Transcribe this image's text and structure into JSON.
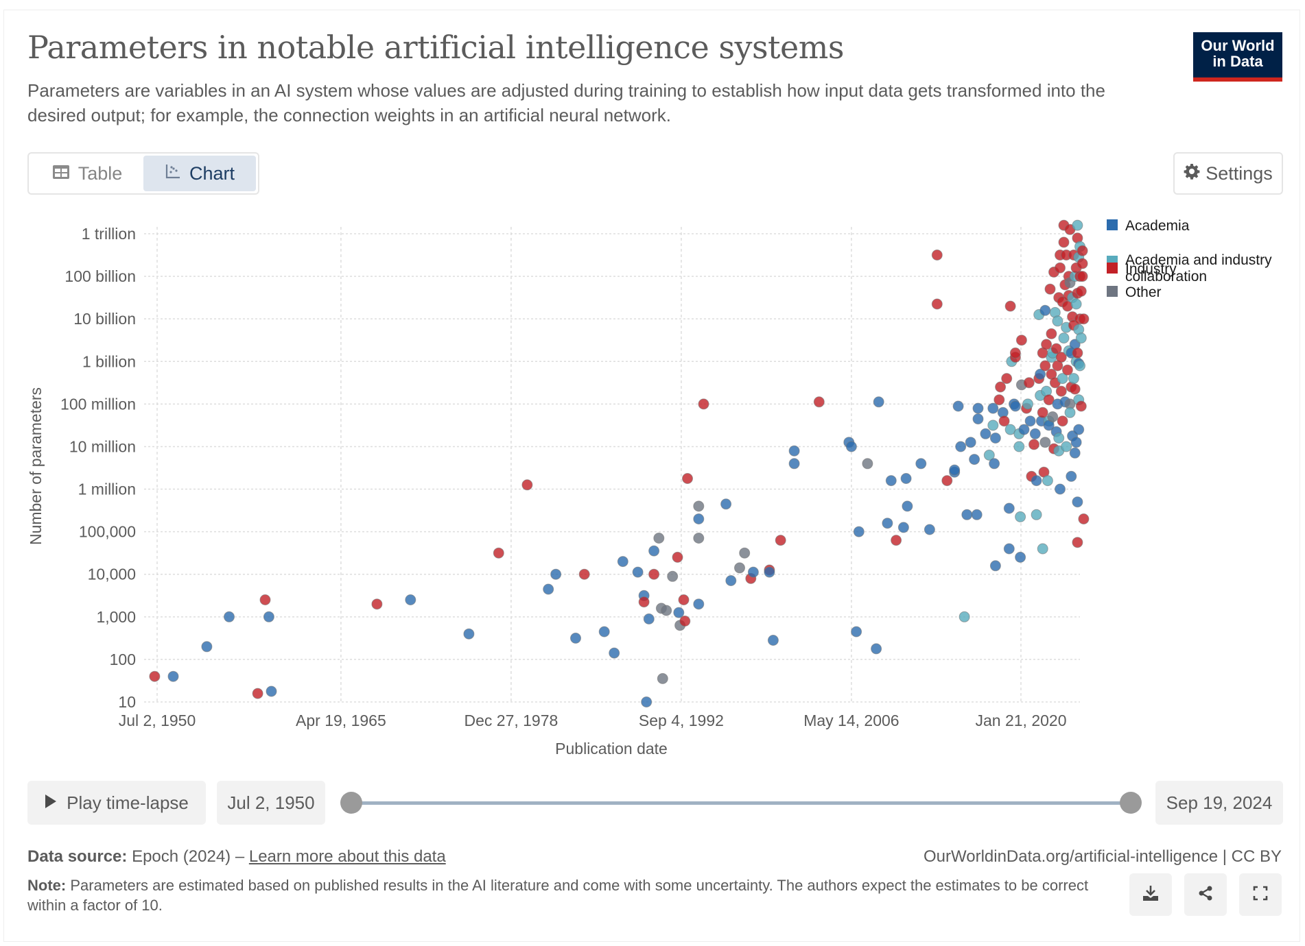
{
  "header": {
    "title": "Parameters in notable artificial intelligence systems",
    "subtitle": "Parameters are variables in an AI system whose values are adjusted during training to establish how input data gets transformed into the desired output; for example, the connection weights in an artificial neural network.",
    "logo_line1": "Our World",
    "logo_line2": "in Data"
  },
  "tabs": [
    {
      "label": "Table",
      "icon": "table-icon",
      "active": false
    },
    {
      "label": "Chart",
      "icon": "scatter-chart-icon",
      "active": true
    }
  ],
  "settings_label": "Settings",
  "controls": {
    "play_label": "Play time-lapse",
    "start_date": "Jul 2, 1950",
    "end_date": "Sep 19, 2024",
    "range_start_fraction": 0,
    "range_end_fraction": 1
  },
  "footer": {
    "source_label": "Data source:",
    "source_text": "Epoch (2024) – ",
    "source_link": "Learn more about this data",
    "url_text": "OurWorldinData.org/artificial-intelligence | CC BY",
    "note_label": "Note:",
    "note_text": "Parameters are estimated based on published results in the AI literature and come with some uncertainty. The authors expect the estimates to be correct within a factor of 10.",
    "buttons": [
      "download-icon",
      "share-icon",
      "fullscreen-icon"
    ]
  },
  "colors": {
    "Academia": "#2c6cae",
    "Academia and industry collaboration": "#58abbd",
    "Industry": "#c22127",
    "Other": "#6e7581"
  },
  "chart_data": {
    "type": "scatter",
    "title": "Parameters in notable artificial intelligence systems",
    "xlabel": "Publication date",
    "ylabel": "Number of parameters",
    "y_scale": "log",
    "ylim": [
      10,
      1000000000000
    ],
    "xlim_years": [
      1949.3,
      2025.8
    ],
    "x_ticks": [
      {
        "year": 1950.5,
        "label": "Jul 2, 1950"
      },
      {
        "year": 1965.3,
        "label": "Apr 19, 1965"
      },
      {
        "year": 1979.0,
        "label": "Dec 27, 1978"
      },
      {
        "year": 1992.7,
        "label": "Sep 4, 1992"
      },
      {
        "year": 2006.4,
        "label": "May 14, 2006"
      },
      {
        "year": 2020.05,
        "label": "Jan 21, 2020"
      }
    ],
    "y_ticks": [
      {
        "exp": 1,
        "label": "10"
      },
      {
        "exp": 2,
        "label": "100"
      },
      {
        "exp": 3,
        "label": "1,000"
      },
      {
        "exp": 4,
        "label": "10,000"
      },
      {
        "exp": 5,
        "label": "100,000"
      },
      {
        "exp": 6,
        "label": "1 million"
      },
      {
        "exp": 7,
        "label": "10 million"
      },
      {
        "exp": 8,
        "label": "100 million"
      },
      {
        "exp": 9,
        "label": "1 billion"
      },
      {
        "exp": 10,
        "label": "10 billion"
      },
      {
        "exp": 11,
        "label": "100 billion"
      },
      {
        "exp": 12,
        "label": "1 trillion"
      }
    ],
    "grid": true,
    "legend_position": "top-right",
    "legend": [
      "Academia",
      "Academia and industry collaboration",
      "Industry",
      "Other"
    ],
    "point_format": "[year, log10(parameters), category]",
    "points": [
      [
        1950.3,
        1.6,
        "I"
      ],
      [
        1951.8,
        1.6,
        "A"
      ],
      [
        1954.5,
        2.3,
        "A"
      ],
      [
        1956.3,
        3.0,
        "A"
      ],
      [
        1958.6,
        1.2,
        "I"
      ],
      [
        1959.2,
        3.4,
        "I"
      ],
      [
        1959.5,
        3.0,
        "A"
      ],
      [
        1959.7,
        1.25,
        "A"
      ],
      [
        1968.2,
        3.3,
        "I"
      ],
      [
        1970.9,
        3.4,
        "A"
      ],
      [
        1975.6,
        2.6,
        "A"
      ],
      [
        1978.0,
        4.5,
        "I"
      ],
      [
        1980.3,
        6.1,
        "I"
      ],
      [
        1982.0,
        3.65,
        "A"
      ],
      [
        1982.6,
        4.0,
        "A"
      ],
      [
        1984.2,
        2.5,
        "A"
      ],
      [
        1984.9,
        4.0,
        "I"
      ],
      [
        1986.5,
        2.65,
        "A"
      ],
      [
        1987.3,
        2.15,
        "A"
      ],
      [
        1988.0,
        4.3,
        "A"
      ],
      [
        1989.2,
        4.05,
        "A"
      ],
      [
        1989.7,
        3.5,
        "A"
      ],
      [
        1989.7,
        3.35,
        "I"
      ],
      [
        1989.9,
        1.0,
        "A"
      ],
      [
        1990.1,
        2.95,
        "A"
      ],
      [
        1990.5,
        4.0,
        "I"
      ],
      [
        1990.5,
        4.55,
        "A"
      ],
      [
        1990.9,
        4.85,
        "O"
      ],
      [
        1991.1,
        3.2,
        "O"
      ],
      [
        1991.2,
        1.55,
        "O"
      ],
      [
        1991.5,
        3.15,
        "O"
      ],
      [
        1992.0,
        3.95,
        "O"
      ],
      [
        1992.4,
        4.4,
        "I"
      ],
      [
        1992.5,
        3.1,
        "A"
      ],
      [
        1992.6,
        2.8,
        "O"
      ],
      [
        1992.9,
        3.4,
        "I"
      ],
      [
        1993.2,
        6.25,
        "I"
      ],
      [
        1993.0,
        2.9,
        "I"
      ],
      [
        1994.1,
        3.3,
        "A"
      ],
      [
        1994.1,
        4.85,
        "O"
      ],
      [
        1994.1,
        5.3,
        "A"
      ],
      [
        1994.1,
        5.6,
        "O"
      ],
      [
        1994.5,
        8.0,
        "I"
      ],
      [
        1996.3,
        5.65,
        "A"
      ],
      [
        1996.7,
        3.85,
        "A"
      ],
      [
        1997.4,
        4.15,
        "O"
      ],
      [
        1997.8,
        4.5,
        "O"
      ],
      [
        1998.3,
        3.9,
        "I"
      ],
      [
        1998.5,
        4.05,
        "A"
      ],
      [
        1999.8,
        4.1,
        "I"
      ],
      [
        1999.8,
        4.05,
        "A"
      ],
      [
        2000.1,
        2.45,
        "A"
      ],
      [
        2000.7,
        4.8,
        "I"
      ],
      [
        2001.8,
        6.9,
        "A"
      ],
      [
        2001.8,
        6.6,
        "A"
      ],
      [
        2003.8,
        8.05,
        "I"
      ],
      [
        2006.2,
        7.1,
        "A"
      ],
      [
        2006.4,
        7.0,
        "A"
      ],
      [
        2006.8,
        2.65,
        "A"
      ],
      [
        2007.0,
        5.0,
        "A"
      ],
      [
        2007.7,
        6.6,
        "O"
      ],
      [
        2008.4,
        2.25,
        "A"
      ],
      [
        2008.6,
        8.05,
        "A"
      ],
      [
        2009.3,
        5.2,
        "A"
      ],
      [
        2009.6,
        6.2,
        "A"
      ],
      [
        2010.0,
        4.8,
        "I"
      ],
      [
        2010.6,
        5.1,
        "A"
      ],
      [
        2010.8,
        6.25,
        "A"
      ],
      [
        2010.9,
        5.6,
        "A"
      ],
      [
        2012.0,
        6.6,
        "A"
      ],
      [
        2012.7,
        5.05,
        "A"
      ],
      [
        2013.3,
        11.5,
        "I"
      ],
      [
        2013.3,
        10.35,
        "I"
      ],
      [
        2014.1,
        6.2,
        "I"
      ],
      [
        2014.7,
        6.4,
        "A"
      ],
      [
        2014.7,
        6.45,
        "A"
      ],
      [
        2015.0,
        7.95,
        "A"
      ],
      [
        2015.2,
        7.0,
        "A"
      ],
      [
        2015.7,
        5.4,
        "A"
      ],
      [
        2015.5,
        3.0,
        "C"
      ],
      [
        2016.0,
        7.1,
        "A"
      ],
      [
        2016.3,
        6.7,
        "A"
      ],
      [
        2016.5,
        5.4,
        "A"
      ],
      [
        2016.6,
        7.9,
        "A"
      ],
      [
        2016.6,
        7.65,
        "A"
      ],
      [
        2017.2,
        7.3,
        "A"
      ],
      [
        2017.5,
        6.8,
        "C"
      ],
      [
        2017.8,
        7.9,
        "A"
      ],
      [
        2017.8,
        7.5,
        "C"
      ],
      [
        2017.9,
        6.6,
        "A"
      ],
      [
        2018.0,
        4.2,
        "A"
      ],
      [
        2018.0,
        7.2,
        "A"
      ],
      [
        2018.3,
        8.1,
        "I"
      ],
      [
        2018.4,
        8.4,
        "I"
      ],
      [
        2018.6,
        7.8,
        "A"
      ],
      [
        2018.7,
        7.6,
        "I"
      ],
      [
        2018.9,
        8.6,
        "I"
      ],
      [
        2019.1,
        5.55,
        "A"
      ],
      [
        2019.1,
        4.6,
        "A"
      ],
      [
        2019.2,
        7.4,
        "C"
      ],
      [
        2019.3,
        9.0,
        "C"
      ],
      [
        2019.2,
        10.3,
        "I"
      ],
      [
        2019.5,
        8.0,
        "A"
      ],
      [
        2019.6,
        7.95,
        "A"
      ],
      [
        2019.6,
        9.1,
        "I"
      ],
      [
        2019.6,
        9.2,
        "I"
      ],
      [
        2019.9,
        7.3,
        "C"
      ],
      [
        2019.9,
        7.0,
        "C"
      ],
      [
        2020.0,
        4.4,
        "A"
      ],
      [
        2020.0,
        5.35,
        "C"
      ],
      [
        2020.1,
        8.45,
        "O"
      ],
      [
        2020.1,
        9.5,
        "I"
      ],
      [
        2020.3,
        7.4,
        "A"
      ],
      [
        2020.5,
        7.9,
        "I"
      ],
      [
        2020.6,
        8.0,
        "C"
      ],
      [
        2020.7,
        8.5,
        "I"
      ],
      [
        2020.8,
        7.6,
        "A"
      ],
      [
        2020.9,
        6.3,
        "I"
      ],
      [
        2021.1,
        7.05,
        "I"
      ],
      [
        2021.2,
        7.3,
        "A"
      ],
      [
        2021.3,
        6.2,
        "A"
      ],
      [
        2021.3,
        5.4,
        "C"
      ],
      [
        2021.5,
        8.6,
        "I"
      ],
      [
        2021.5,
        10.1,
        "C"
      ],
      [
        2021.6,
        8.2,
        "C"
      ],
      [
        2021.6,
        8.7,
        "A"
      ],
      [
        2021.7,
        7.6,
        "A"
      ],
      [
        2021.8,
        9.2,
        "I"
      ],
      [
        2021.8,
        7.8,
        "I"
      ],
      [
        2021.8,
        4.6,
        "C"
      ],
      [
        2021.9,
        6.4,
        "I"
      ],
      [
        2022.0,
        7.1,
        "O"
      ],
      [
        2022.0,
        8.9,
        "I"
      ],
      [
        2022.0,
        10.2,
        "A"
      ],
      [
        2022.1,
        8.3,
        "C"
      ],
      [
        2022.1,
        9.4,
        "I"
      ],
      [
        2022.2,
        6.2,
        "C"
      ],
      [
        2022.3,
        7.6,
        "C"
      ],
      [
        2022.3,
        7.5,
        "A"
      ],
      [
        2022.3,
        8.1,
        "I"
      ],
      [
        2022.4,
        10.7,
        "I"
      ],
      [
        2022.5,
        9.65,
        "I"
      ],
      [
        2022.5,
        9.1,
        "C"
      ],
      [
        2022.5,
        8.7,
        "I"
      ],
      [
        2022.6,
        7.7,
        "O"
      ],
      [
        2022.6,
        9.2,
        "C"
      ],
      [
        2022.7,
        6.95,
        "I"
      ],
      [
        2022.7,
        11.1,
        "I"
      ],
      [
        2022.8,
        10.15,
        "C"
      ],
      [
        2022.8,
        8.5,
        "I"
      ],
      [
        2022.9,
        9.3,
        "I"
      ],
      [
        2022.9,
        7.35,
        "A"
      ],
      [
        2023.0,
        9.95,
        "C"
      ],
      [
        2023.0,
        8.9,
        "I"
      ],
      [
        2023.0,
        8.0,
        "A"
      ],
      [
        2023.1,
        7.2,
        "C"
      ],
      [
        2023.1,
        6.9,
        "C"
      ],
      [
        2023.1,
        10.5,
        "I"
      ],
      [
        2023.2,
        6.0,
        "A"
      ],
      [
        2023.2,
        11.5,
        "I"
      ],
      [
        2023.2,
        11.2,
        "I"
      ],
      [
        2023.3,
        9.1,
        "I"
      ],
      [
        2023.3,
        8.3,
        "I"
      ],
      [
        2023.4,
        10.4,
        "I"
      ],
      [
        2023.4,
        8.6,
        "C"
      ],
      [
        2023.4,
        7.6,
        "I"
      ],
      [
        2023.5,
        11.8,
        "I"
      ],
      [
        2023.5,
        12.2,
        "I"
      ],
      [
        2023.5,
        9.55,
        "C"
      ],
      [
        2023.6,
        8.05,
        "A"
      ],
      [
        2023.6,
        10.8,
        "I"
      ],
      [
        2023.7,
        11.5,
        "I"
      ],
      [
        2023.7,
        7.0,
        "C"
      ],
      [
        2023.7,
        9.8,
        "C"
      ],
      [
        2023.8,
        10.3,
        "I"
      ],
      [
        2023.8,
        8.8,
        "I"
      ],
      [
        2023.9,
        10.55,
        "I"
      ],
      [
        2023.9,
        11.0,
        "I"
      ],
      [
        2023.9,
        9.25,
        "C"
      ],
      [
        2024.0,
        8.0,
        "O"
      ],
      [
        2024.0,
        10.85,
        "O"
      ],
      [
        2024.0,
        7.8,
        "C"
      ],
      [
        2024.0,
        12.1,
        "I"
      ],
      [
        2024.1,
        9.2,
        "A"
      ],
      [
        2024.1,
        8.4,
        "I"
      ],
      [
        2024.1,
        6.3,
        "A"
      ],
      [
        2024.2,
        10.5,
        "C"
      ],
      [
        2024.2,
        7.25,
        "A"
      ],
      [
        2024.2,
        10.05,
        "I"
      ],
      [
        2024.3,
        11.5,
        "I"
      ],
      [
        2024.3,
        9.85,
        "I"
      ],
      [
        2024.3,
        8.6,
        "C"
      ],
      [
        2024.4,
        11.0,
        "C"
      ],
      [
        2024.4,
        9.4,
        "A"
      ],
      [
        2024.4,
        8.35,
        "I"
      ],
      [
        2024.4,
        6.85,
        "A"
      ],
      [
        2024.5,
        11.2,
        "I"
      ],
      [
        2024.5,
        10.35,
        "C"
      ],
      [
        2024.5,
        9.0,
        "C"
      ],
      [
        2024.5,
        7.1,
        "A"
      ],
      [
        2024.6,
        12.2,
        "C"
      ],
      [
        2024.6,
        11.9,
        "I"
      ],
      [
        2024.6,
        10.6,
        "I"
      ],
      [
        2024.6,
        9.2,
        "I"
      ],
      [
        2024.6,
        5.7,
        "A"
      ],
      [
        2024.6,
        4.75,
        "I"
      ],
      [
        2024.7,
        8.1,
        "C"
      ],
      [
        2024.7,
        8.95,
        "A"
      ],
      [
        2024.7,
        9.75,
        "C"
      ],
      [
        2024.7,
        11.45,
        "C"
      ],
      [
        2024.7,
        7.4,
        "A"
      ],
      [
        2024.8,
        11.7,
        "C"
      ],
      [
        2024.8,
        10.0,
        "I"
      ],
      [
        2024.8,
        8.9,
        "C"
      ],
      [
        2024.8,
        11.0,
        "I"
      ],
      [
        2024.9,
        9.55,
        "C"
      ],
      [
        2024.9,
        10.65,
        "I"
      ],
      [
        2024.9,
        7.95,
        "I"
      ],
      [
        2025.0,
        11.3,
        "I"
      ],
      [
        2025.0,
        11.6,
        "I"
      ],
      [
        2025.0,
        11.0,
        "I"
      ],
      [
        2025.1,
        10.0,
        "I"
      ],
      [
        2025.1,
        5.3,
        "I"
      ]
    ]
  }
}
